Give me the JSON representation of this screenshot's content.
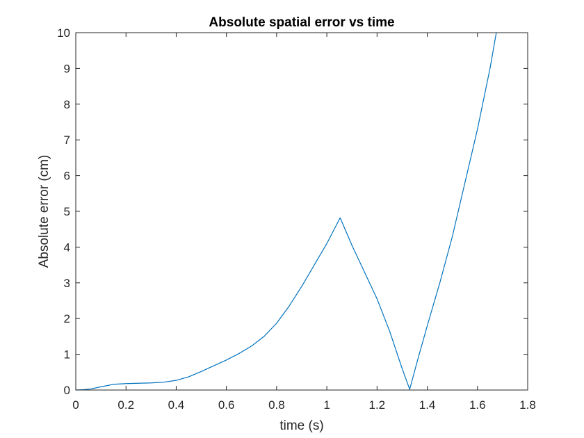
{
  "chart_data": {
    "type": "line",
    "title": "Absolute spatial error vs time",
    "xlabel": "time (s)",
    "ylabel": "Absolute error (cm)",
    "xlim": [
      0,
      1.8
    ],
    "ylim": [
      0,
      10
    ],
    "xticks": [
      0,
      0.2,
      0.4,
      0.6,
      0.8,
      1,
      1.2,
      1.4,
      1.6,
      1.8
    ],
    "xtick_labels": [
      "0",
      "0.2",
      "0.4",
      "0.6",
      "0.8",
      "1",
      "1.2",
      "1.4",
      "1.6",
      "1.8"
    ],
    "yticks": [
      0,
      1,
      2,
      3,
      4,
      5,
      6,
      7,
      8,
      9,
      10
    ],
    "ytick_labels": [
      "0",
      "1",
      "2",
      "3",
      "4",
      "5",
      "6",
      "7",
      "8",
      "9",
      "10"
    ],
    "grid": false,
    "box": true,
    "series": [
      {
        "color": "#0072bd",
        "x": [
          0,
          0.03,
          0.06,
          0.1,
          0.15,
          0.2,
          0.25,
          0.3,
          0.35,
          0.4,
          0.45,
          0.5,
          0.55,
          0.6,
          0.65,
          0.7,
          0.75,
          0.8,
          0.85,
          0.9,
          0.95,
          1.0,
          1.053,
          1.1,
          1.15,
          1.2,
          1.25,
          1.3,
          1.33,
          1.36,
          1.4,
          1.45,
          1.5,
          1.55,
          1.6,
          1.65,
          1.675
        ],
        "y": [
          0,
          0.01,
          0.03,
          0.09,
          0.16,
          0.18,
          0.19,
          0.2,
          0.22,
          0.27,
          0.37,
          0.52,
          0.68,
          0.84,
          1.02,
          1.23,
          1.5,
          1.87,
          2.35,
          2.9,
          3.5,
          4.1,
          4.82,
          4.05,
          3.3,
          2.55,
          1.65,
          0.6,
          0.02,
          0.8,
          1.8,
          3.0,
          4.3,
          5.8,
          7.3,
          9.0,
          10.0
        ]
      }
    ]
  }
}
